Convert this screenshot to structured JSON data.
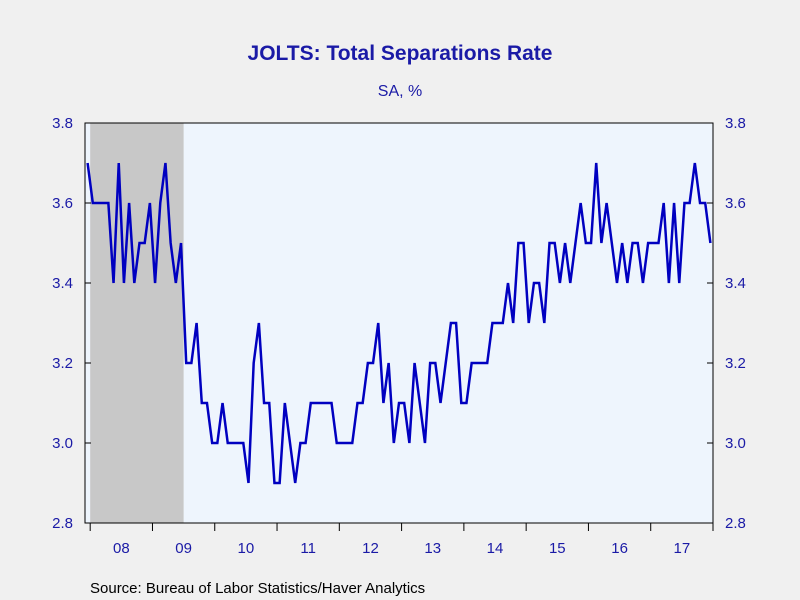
{
  "chart_data": {
    "type": "line",
    "title": "JOLTS: Total Separations Rate",
    "subtitle": "SA, %",
    "source": "Source:  Bureau of Labor Statistics/Haver Analytics",
    "x_start": "2007-12",
    "frequency": "monthly",
    "ylim": [
      2.8,
      3.8
    ],
    "y_ticks": [
      "3.8",
      "3.6",
      "3.4",
      "3.2",
      "3.0",
      "2.8"
    ],
    "x_ticks": [
      "08",
      "09",
      "10",
      "11",
      "12",
      "13",
      "14",
      "15",
      "16",
      "17"
    ],
    "recession_shading": {
      "start": "2008-01",
      "end": "2009-06"
    },
    "colors": {
      "line": "#0000c0",
      "plot_background": "#eef5fd",
      "recession": "#c8c8c8",
      "text": "#1a1aa6",
      "page_background": "#f0f0f0"
    },
    "series": [
      {
        "values": [
          3.7,
          3.6,
          3.6,
          3.6,
          3.6,
          3.4,
          3.7,
          3.4,
          3.6,
          3.4,
          3.5,
          3.5,
          3.6,
          3.4,
          3.6,
          3.7,
          3.5,
          3.4,
          3.5,
          3.2,
          3.2,
          3.3,
          3.1,
          3.1,
          3.0,
          3.0,
          3.1,
          3.0,
          3.0,
          3.0,
          3.0,
          2.9,
          3.2,
          3.3,
          3.1,
          3.1,
          2.9,
          2.9,
          3.1,
          3.0,
          2.9,
          3.0,
          3.0,
          3.1,
          3.1,
          3.1,
          3.1,
          3.1,
          3.0,
          3.0,
          3.0,
          3.0,
          3.1,
          3.1,
          3.2,
          3.2,
          3.3,
          3.1,
          3.2,
          3.0,
          3.1,
          3.1,
          3.0,
          3.2,
          3.1,
          3.0,
          3.2,
          3.2,
          3.1,
          3.2,
          3.3,
          3.3,
          3.1,
          3.1,
          3.2,
          3.2,
          3.2,
          3.2,
          3.3,
          3.3,
          3.3,
          3.4,
          3.3,
          3.5,
          3.5,
          3.3,
          3.4,
          3.4,
          3.3,
          3.5,
          3.5,
          3.4,
          3.5,
          3.4,
          3.5,
          3.6,
          3.5,
          3.5,
          3.7,
          3.5,
          3.6,
          3.5,
          3.4,
          3.5,
          3.4,
          3.5,
          3.5,
          3.4,
          3.5,
          3.5,
          3.5,
          3.6,
          3.4,
          3.6,
          3.4,
          3.6,
          3.6,
          3.7,
          3.6,
          3.6,
          3.5
        ]
      }
    ]
  }
}
